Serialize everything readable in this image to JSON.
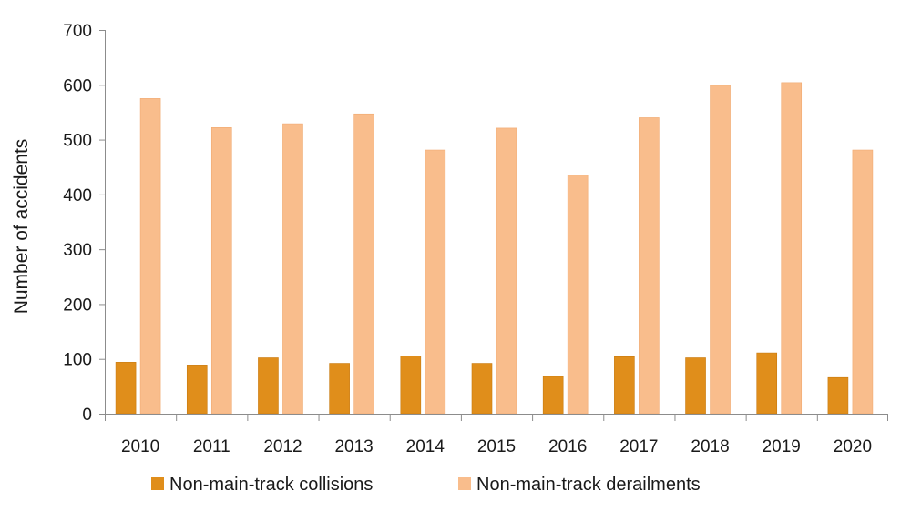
{
  "chart_data": {
    "type": "bar",
    "title": "",
    "xlabel": "",
    "ylabel": "Number of accidents",
    "categories": [
      "2010",
      "2011",
      "2012",
      "2013",
      "2014",
      "2015",
      "2016",
      "2017",
      "2018",
      "2019",
      "2020"
    ],
    "series": [
      {
        "name": "Non-main-track collisions",
        "color": "#e08e1b",
        "values": [
          94,
          89,
          102,
          92,
          105,
          92,
          68,
          104,
          102,
          111,
          66
        ]
      },
      {
        "name": "Non-main-track derailments",
        "color": "#f9bd8c",
        "values": [
          575,
          522,
          529,
          547,
          481,
          521,
          435,
          540,
          599,
          604,
          481
        ]
      }
    ],
    "ylim": [
      0,
      700
    ],
    "yticks": [
      0,
      100,
      200,
      300,
      400,
      500,
      600,
      700
    ],
    "grid": false,
    "legend_position": "bottom"
  }
}
